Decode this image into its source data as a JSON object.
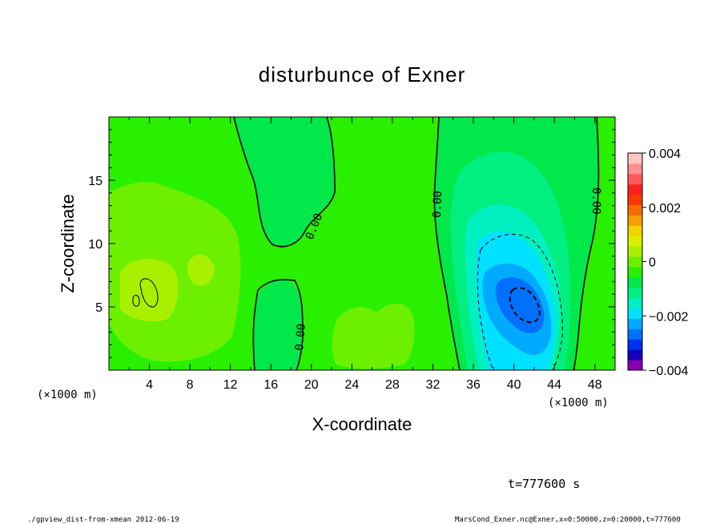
{
  "chart_data": {
    "type": "contour",
    "title": "disturbunce of Exner",
    "xlabel": "X-coordinate",
    "ylabel": "Z-coordinate",
    "x_unit": "(×1000 m)",
    "y_unit": "(×1000 m)",
    "xlim": [
      0,
      50
    ],
    "ylim": [
      0,
      20
    ],
    "x_ticks": [
      4,
      8,
      12,
      16,
      20,
      24,
      28,
      32,
      36,
      40,
      44,
      48
    ],
    "y_ticks": [
      5,
      10,
      15
    ],
    "colorbar": {
      "min": -0.004,
      "max": 0.004,
      "tick_values": [
        0.004,
        0.002,
        0,
        -0.002,
        -0.004
      ],
      "tick_labels": [
        "0.004",
        "0.002",
        "0",
        "−0.002",
        "−0.004"
      ],
      "colors": [
        "#8a00b0",
        "#1500c0",
        "#0030f0",
        "#0070ff",
        "#00aaff",
        "#00e0ff",
        "#00f0c0",
        "#00ef80",
        "#00e84a",
        "#28f000",
        "#6cf000",
        "#a8f000",
        "#d8f000",
        "#f0d400",
        "#f5a000",
        "#f66c00",
        "#f63a00",
        "#ff2020",
        "#ff5a5a",
        "#ff9090",
        "#ffc4c4"
      ]
    },
    "contour_labels": [
      "0.00",
      "0.00",
      "0.00",
      "0.00"
    ]
  },
  "annotations": {
    "time": "t=777600 s",
    "footer_left": "./gpview_dist-from-xmean  2012-06-19",
    "footer_right": "MarsCond_Exner.nc@Exner,x=0:50000,z=0:20000,t=777600"
  }
}
